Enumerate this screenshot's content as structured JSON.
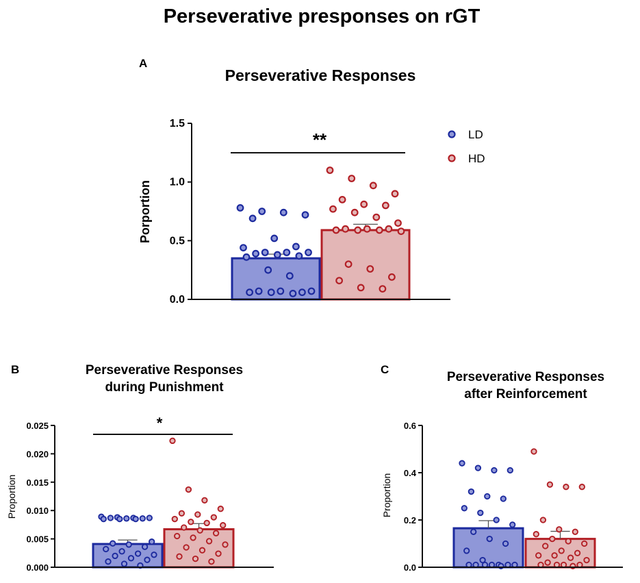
{
  "title": "Perseverative presponses on rGT",
  "colors": {
    "ld_fill": "#8f97d8",
    "ld_stroke": "#1c2a9e",
    "hd_fill": "#e3b6b6",
    "hd_stroke": "#b32026",
    "axis": "#111111"
  },
  "legend": [
    {
      "label": "LD",
      "series": "LD"
    },
    {
      "label": "HD",
      "series": "HD"
    }
  ],
  "chart_data": [
    {
      "panel": "A",
      "type": "bar",
      "title": "Perseverative Responses",
      "ylabel": "Porportion",
      "ylim": [
        0,
        1.5
      ],
      "yticks": [
        "0.0",
        "0.5",
        "1.0",
        "1.5"
      ],
      "yticks_values": [
        0,
        0.5,
        1.0,
        1.5
      ],
      "significance": "**",
      "series": [
        {
          "name": "LD",
          "mean": 0.35,
          "sem": 0.035,
          "points": [
            0.78,
            0.75,
            0.74,
            0.72,
            0.69,
            0.52,
            0.45,
            0.44,
            0.4,
            0.4,
            0.4,
            0.39,
            0.38,
            0.37,
            0.36,
            0.25,
            0.2,
            0.07,
            0.07,
            0.07,
            0.06,
            0.06,
            0.06,
            0.05
          ]
        },
        {
          "name": "HD",
          "mean": 0.59,
          "sem": 0.05,
          "points": [
            1.1,
            1.03,
            0.97,
            0.9,
            0.85,
            0.81,
            0.8,
            0.77,
            0.74,
            0.7,
            0.65,
            0.6,
            0.6,
            0.6,
            0.59,
            0.59,
            0.59,
            0.58,
            0.3,
            0.26,
            0.19,
            0.16,
            0.1,
            0.09
          ]
        }
      ]
    },
    {
      "panel": "B",
      "type": "bar",
      "title": "Perseverative Responses during Punishment",
      "title_lines": [
        "Perseverative Responses",
        "during Punishment"
      ],
      "ylabel": "Proportion",
      "ylim": [
        0,
        0.025
      ],
      "yticks": [
        "0.000",
        "0.005",
        "0.010",
        "0.015",
        "0.020",
        "0.025"
      ],
      "yticks_values": [
        0,
        0.005,
        0.01,
        0.015,
        0.02,
        0.025
      ],
      "significance": "*",
      "series": [
        {
          "name": "LD",
          "mean": 0.0041,
          "sem": 0.0007,
          "points": [
            0.0089,
            0.0088,
            0.0087,
            0.0087,
            0.0087,
            0.0086,
            0.0086,
            0.0085,
            0.0085,
            0.0085,
            0.0045,
            0.0042,
            0.004,
            0.0036,
            0.0032,
            0.0028,
            0.0024,
            0.0022,
            0.002,
            0.0016,
            0.0013,
            0.001,
            0.0006,
            0.0003
          ]
        },
        {
          "name": "HD",
          "mean": 0.0067,
          "sem": 0.001,
          "points": [
            0.0223,
            0.0137,
            0.0118,
            0.0103,
            0.0095,
            0.0093,
            0.0088,
            0.0085,
            0.008,
            0.0078,
            0.0074,
            0.007,
            0.0065,
            0.006,
            0.0055,
            0.0052,
            0.0046,
            0.004,
            0.0035,
            0.003,
            0.0024,
            0.0019,
            0.0015,
            0.001
          ]
        }
      ]
    },
    {
      "panel": "C",
      "type": "bar",
      "title": "Perseverative Responses after Reinforcement",
      "title_lines": [
        "Perseverative Responses",
        "after Reinforcement"
      ],
      "ylabel": "Proportion",
      "ylim": [
        0,
        0.6
      ],
      "yticks": [
        "0.0",
        "0.2",
        "0.4",
        "0.6"
      ],
      "yticks_values": [
        0,
        0.2,
        0.4,
        0.6
      ],
      "significance": "",
      "series": [
        {
          "name": "LD",
          "mean": 0.165,
          "sem": 0.032,
          "points": [
            0.44,
            0.42,
            0.41,
            0.41,
            0.32,
            0.3,
            0.29,
            0.25,
            0.23,
            0.2,
            0.18,
            0.15,
            0.12,
            0.1,
            0.07,
            0.03,
            0.01,
            0.01,
            0.01,
            0.01,
            0.01,
            0.01,
            0.01,
            0.005
          ]
        },
        {
          "name": "HD",
          "mean": 0.12,
          "sem": 0.032,
          "points": [
            0.49,
            0.35,
            0.34,
            0.34,
            0.2,
            0.16,
            0.15,
            0.14,
            0.12,
            0.11,
            0.1,
            0.09,
            0.07,
            0.06,
            0.05,
            0.05,
            0.04,
            0.03,
            0.02,
            0.01,
            0.01,
            0.01,
            0.01,
            0.005
          ]
        }
      ]
    }
  ]
}
